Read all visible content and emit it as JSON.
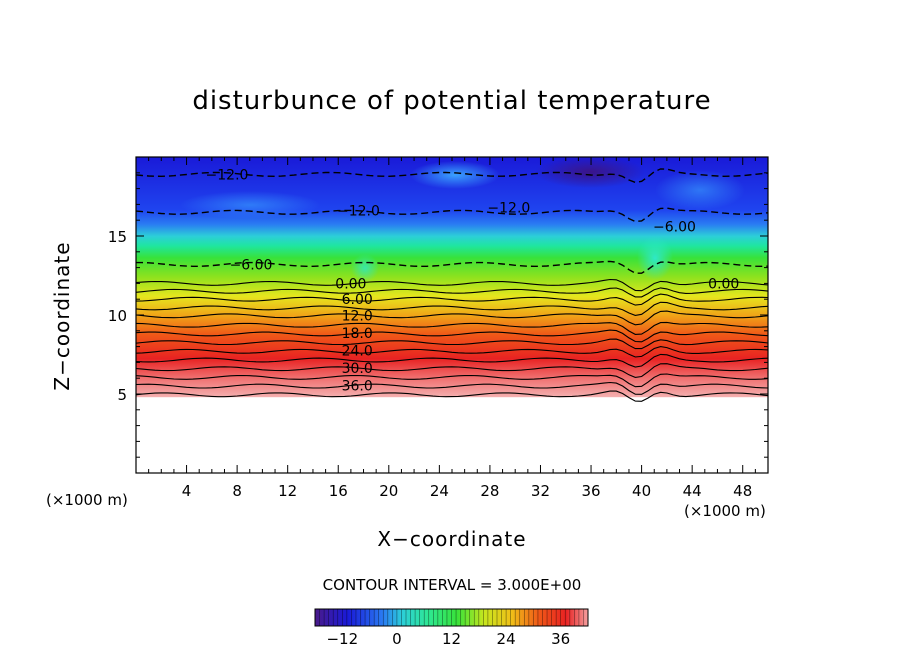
{
  "chart_data": {
    "type": "heatmap",
    "title": "disturbunce of potential temperature",
    "xlabel": "X−coordinate",
    "ylabel": "Z−coordinate",
    "x_unit_left": "(×1000 m)",
    "x_unit_right": "(×1000 m)",
    "xlim": [
      0,
      50
    ],
    "ylim": [
      0,
      20
    ],
    "xticks": [
      4,
      8,
      12,
      16,
      20,
      24,
      28,
      32,
      36,
      40,
      44,
      48
    ],
    "yticks": [
      5,
      10,
      15
    ],
    "contour_interval_label": "CONTOUR INTERVAL = 3.000E+00",
    "contour_interval": 3,
    "field_bottom_z": 4.8,
    "color_range": [
      -18,
      42
    ],
    "colorbar_ticks": [
      -12,
      0,
      12,
      24,
      36
    ],
    "contour_labels": [
      {
        "text": "−12.0",
        "x": 7.2,
        "z": 18.9
      },
      {
        "text": "−12.0",
        "x": 17.6,
        "z": 16.6
      },
      {
        "text": "−12.0",
        "x": 29.5,
        "z": 16.8
      },
      {
        "text": "−6.00",
        "x": 42.6,
        "z": 15.6
      },
      {
        "text": "−6.00",
        "x": 9.1,
        "z": 13.2
      },
      {
        "text": "0.00",
        "x": 17.0,
        "z": 12.0
      },
      {
        "text": "0.00",
        "x": 46.5,
        "z": 12.0
      },
      {
        "text": "6.00",
        "x": 17.5,
        "z": 11.0
      },
      {
        "text": "12.0",
        "x": 17.5,
        "z": 9.98
      },
      {
        "text": "18.0",
        "x": 17.5,
        "z": 8.85
      },
      {
        "text": "24.0",
        "x": 17.5,
        "z": 7.74
      },
      {
        "text": "30.0",
        "x": 17.5,
        "z": 6.63
      },
      {
        "text": "36.0",
        "x": 17.5,
        "z": 5.53
      }
    ],
    "contours": [
      {
        "level": 39,
        "z": 4.95
      },
      {
        "level": 36,
        "z": 5.5
      },
      {
        "level": 33,
        "z": 6.05
      },
      {
        "level": 30,
        "z": 6.6
      },
      {
        "level": 27,
        "z": 7.15
      },
      {
        "level": 24,
        "z": 7.7
      },
      {
        "level": 21,
        "z": 8.25
      },
      {
        "level": 18,
        "z": 8.8
      },
      {
        "level": 15,
        "z": 9.35
      },
      {
        "level": 12,
        "z": 9.95
      },
      {
        "level": 9,
        "z": 10.45
      },
      {
        "level": 6,
        "z": 11.0
      },
      {
        "level": 3,
        "z": 11.5
      },
      {
        "level": 0,
        "z": 12.0
      },
      {
        "level": -6,
        "z": 13.2
      },
      {
        "level": -12,
        "z": 16.5
      },
      {
        "level": -12,
        "z": 18.9
      }
    ]
  }
}
